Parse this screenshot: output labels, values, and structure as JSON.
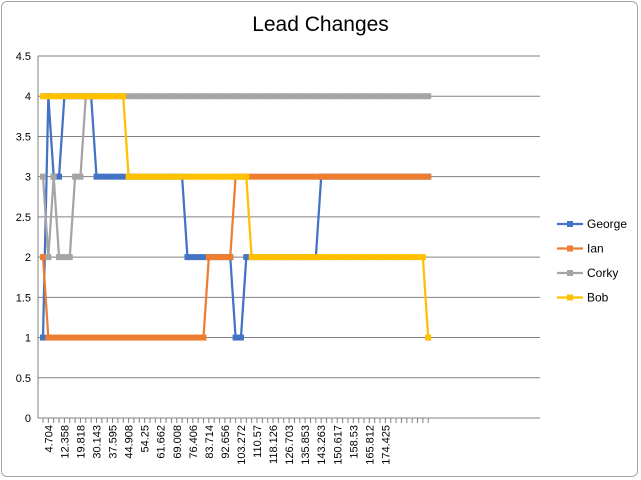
{
  "chart_data": {
    "type": "line",
    "title": "Lead Changes",
    "xlabel": "",
    "ylabel": "",
    "ylim": [
      0,
      4.5
    ],
    "yticks": [
      "0",
      "0.5",
      "1",
      "1.5",
      "2",
      "2.5",
      "3",
      "3.5",
      "4",
      "4.5"
    ],
    "grid": "horizontal",
    "legend": "right",
    "x_tick_labels": [
      "4.704",
      "12.358",
      "19.818",
      "30.143",
      "37.595",
      "44.908",
      "54.25",
      "61.662",
      "69.008",
      "76.406",
      "83.714",
      "92.656",
      "103.272",
      "110.57",
      "118.126",
      "126.703",
      "135.853",
      "143.263",
      "150.617",
      "158.53",
      "165.812",
      "174.425"
    ],
    "series": [
      {
        "name": "George",
        "color": "#4472c4",
        "values": [
          1,
          4,
          3,
          3,
          4,
          4,
          4,
          4,
          4,
          4,
          3,
          3,
          3,
          3,
          3,
          3,
          3,
          3,
          3,
          3,
          3,
          3,
          3,
          3,
          3,
          3,
          3,
          2,
          2,
          2,
          2,
          2,
          2,
          2,
          2,
          2,
          1,
          1,
          2,
          2,
          2,
          2,
          2,
          2,
          2,
          2,
          2,
          2,
          2,
          2,
          2,
          2,
          3,
          3,
          3,
          3,
          3,
          3,
          3,
          3,
          3,
          3,
          3,
          3,
          3,
          3,
          3,
          3,
          3,
          3,
          3,
          3,
          3
        ]
      },
      {
        "name": "Ian",
        "color": "#ed7d31",
        "values": [
          2,
          1,
          1,
          1,
          1,
          1,
          1,
          1,
          1,
          1,
          1,
          1,
          1,
          1,
          1,
          1,
          1,
          1,
          1,
          1,
          1,
          1,
          1,
          1,
          1,
          1,
          1,
          1,
          1,
          1,
          1,
          2,
          2,
          2,
          2,
          2,
          3,
          3,
          3,
          3,
          3,
          3,
          3,
          3,
          3,
          3,
          3,
          3,
          3,
          3,
          3,
          3,
          3,
          3,
          3,
          3,
          3,
          3,
          3,
          3,
          3,
          3,
          3,
          3,
          3,
          3,
          3,
          3,
          3,
          3,
          3,
          3,
          3
        ]
      },
      {
        "name": "Corky",
        "color": "#a5a5a5",
        "values": [
          3,
          2,
          3,
          2,
          2,
          2,
          3,
          3,
          4,
          4,
          4,
          4,
          4,
          4,
          4,
          4,
          4,
          4,
          4,
          4,
          4,
          4,
          4,
          4,
          4,
          4,
          4,
          4,
          4,
          4,
          4,
          4,
          4,
          4,
          4,
          4,
          4,
          4,
          4,
          4,
          4,
          4,
          4,
          4,
          4,
          4,
          4,
          4,
          4,
          4,
          4,
          4,
          4,
          4,
          4,
          4,
          4,
          4,
          4,
          4,
          4,
          4,
          4,
          4,
          4,
          4,
          4,
          4,
          4,
          4,
          4,
          4,
          4
        ]
      },
      {
        "name": "Bob",
        "color": "#ffc000",
        "values": [
          4,
          4,
          4,
          4,
          4,
          4,
          4,
          4,
          4,
          4,
          4,
          4,
          4,
          4,
          4,
          4,
          3,
          3,
          3,
          3,
          3,
          3,
          3,
          3,
          3,
          3,
          3,
          3,
          3,
          3,
          3,
          3,
          3,
          3,
          3,
          3,
          3,
          3,
          3,
          2,
          2,
          2,
          2,
          2,
          2,
          2,
          2,
          2,
          2,
          2,
          2,
          2,
          2,
          2,
          2,
          2,
          2,
          2,
          2,
          2,
          2,
          2,
          2,
          2,
          2,
          2,
          2,
          2,
          2,
          2,
          2,
          2,
          1
        ]
      }
    ]
  }
}
